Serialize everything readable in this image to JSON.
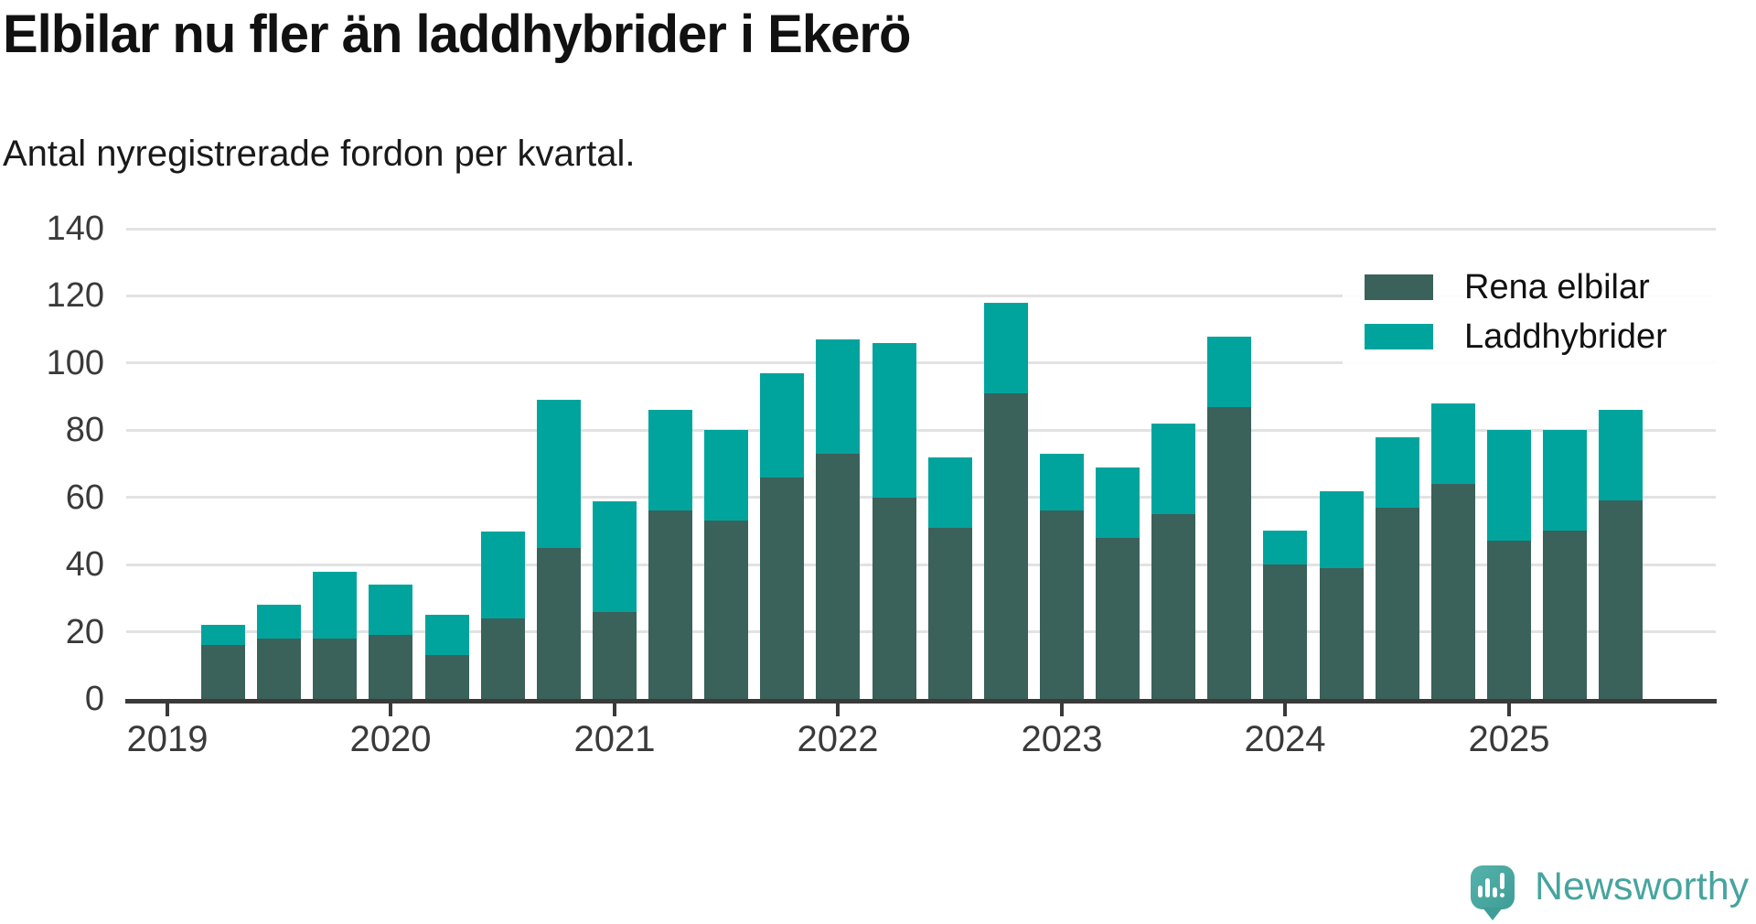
{
  "title": "Elbilar nu fler än laddhybrider i Ekerö",
  "subtitle": "Antal nyregistrerade fordon per kvartal.",
  "colors": {
    "electric": "#3a615a",
    "hybrid": "#00a49d",
    "axis_text": "#3a3a3a",
    "axis_line": "#3a3a3a",
    "gridline": "#e2e2e2",
    "logo_teal": "#47a49e"
  },
  "legend": {
    "items": [
      {
        "label": "Rena elbilar",
        "color_key": "electric"
      },
      {
        "label": "Laddhybrider",
        "color_key": "hybrid"
      }
    ]
  },
  "branding": {
    "logo_text": "Newsworthy",
    "logo_icon": "speech-bubble-with-bar-chart-and-exclamation"
  },
  "chart_data": {
    "type": "bar",
    "stacked": true,
    "title": "Elbilar nu fler än laddhybrider i Ekerö",
    "subtitle": "Antal nyregistrerade fordon per kvartal.",
    "grid": "horizontal",
    "legend_position": "top-right",
    "ylim": [
      0,
      140
    ],
    "yticks": [
      0,
      20,
      40,
      60,
      80,
      100,
      120,
      140
    ],
    "xtick_years": [
      2019,
      2020,
      2021,
      2022,
      2023,
      2024,
      2025
    ],
    "categories": [
      "2019 K2",
      "2019 K3",
      "2019 K4",
      "2020 K1",
      "2020 K2",
      "2020 K3",
      "2020 K4",
      "2021 K1",
      "2021 K2",
      "2021 K3",
      "2021 K4",
      "2022 K1",
      "2022 K2",
      "2022 K3",
      "2022 K4",
      "2023 K1",
      "2023 K2",
      "2023 K3",
      "2023 K4",
      "2024 K1",
      "2024 K2",
      "2024 K3",
      "2024 K4",
      "2025 K1",
      "2025 K2",
      "2025 K3"
    ],
    "series": [
      {
        "name": "Rena elbilar",
        "color_key": "electric",
        "values": [
          16,
          18,
          18,
          19,
          13,
          24,
          45,
          26,
          56,
          53,
          66,
          73,
          60,
          51,
          91,
          56,
          48,
          55,
          87,
          40,
          39,
          57,
          64,
          47,
          50,
          59
        ]
      },
      {
        "name": "Laddhybrider",
        "color_key": "hybrid",
        "values": [
          6,
          10,
          20,
          15,
          12,
          26,
          44,
          33,
          30,
          27,
          31,
          34,
          46,
          21,
          27,
          17,
          21,
          27,
          21,
          10,
          23,
          21,
          24,
          33,
          30,
          27
        ]
      }
    ],
    "totals": [
      22,
      28,
      38,
      34,
      25,
      50,
      89,
      59,
      86,
      80,
      97,
      107,
      106,
      72,
      118,
      73,
      69,
      82,
      108,
      50,
      62,
      78,
      88,
      80,
      80,
      86
    ]
  }
}
